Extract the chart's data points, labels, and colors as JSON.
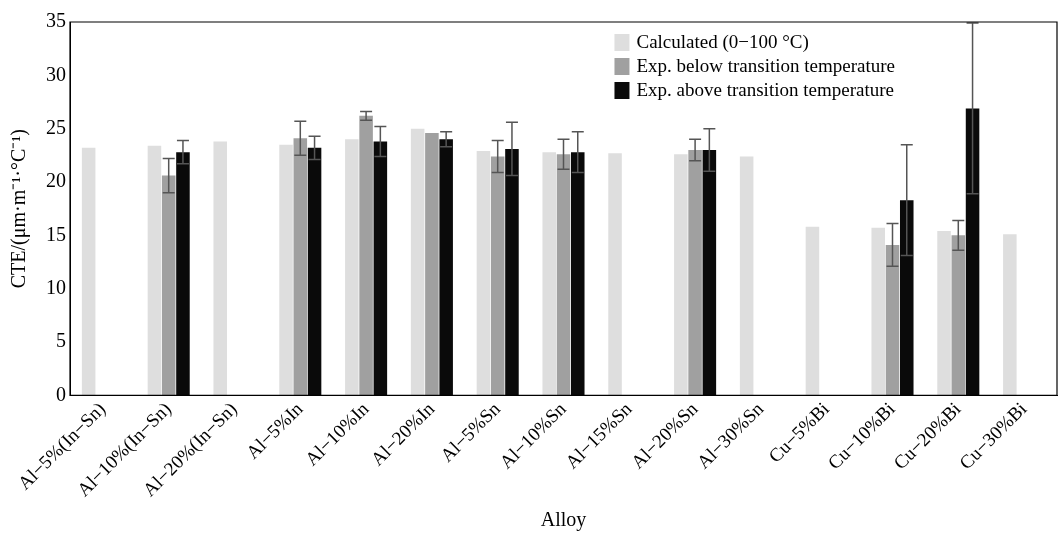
{
  "chart_data": {
    "type": "bar",
    "xlabel": "Alloy",
    "ylabel": "CTE/(μm·m⁻¹·°C⁻¹)",
    "categories": [
      "Al−5%(In−Sn)",
      "Al−10%(In−Sn)",
      "Al−20%(In−Sn)",
      "Al−5%In",
      "Al−10%In",
      "Al−20%In",
      "Al−5%Sn",
      "Al−10%Sn",
      "Al−15%Sn",
      "Al−20%Sn",
      "Al−30%Sn",
      "Cu−5%Bi",
      "Cu−10%Bi",
      "Cu−20%Bi",
      "Cu−30%Bi"
    ],
    "series": [
      {
        "name": "Calculated (0−100 °C)",
        "color": "#dedede",
        "values": [
          23.2,
          23.4,
          23.8,
          23.5,
          24.0,
          25.0,
          22.9,
          22.8,
          22.7,
          22.6,
          22.4,
          15.8,
          15.7,
          15.4,
          15.1
        ]
      },
      {
        "name": "Exp. below transition temperature",
        "color": "#a0a0a0",
        "values": [
          null,
          20.6,
          null,
          24.1,
          26.2,
          24.6,
          22.4,
          22.6,
          null,
          23.0,
          null,
          null,
          14.1,
          15.0,
          null
        ],
        "errors": [
          null,
          1.6,
          null,
          1.6,
          0.4,
          null,
          1.5,
          1.4,
          null,
          1.0,
          null,
          null,
          2.0,
          1.4,
          null
        ]
      },
      {
        "name": "Exp. above transition temperature",
        "color": "#0a0a0a",
        "values": [
          null,
          22.8,
          null,
          23.2,
          23.8,
          24.0,
          23.1,
          22.8,
          null,
          23.0,
          null,
          null,
          18.3,
          26.9,
          null
        ],
        "errors": [
          null,
          1.1,
          null,
          1.1,
          1.4,
          0.7,
          2.5,
          1.9,
          null,
          2.0,
          null,
          null,
          5.2,
          8.0,
          null
        ]
      }
    ],
    "ylim": [
      0,
      35
    ],
    "yticks": [
      0,
      5,
      10,
      15,
      20,
      25,
      30,
      35
    ],
    "grid": false,
    "legend": "top right"
  }
}
